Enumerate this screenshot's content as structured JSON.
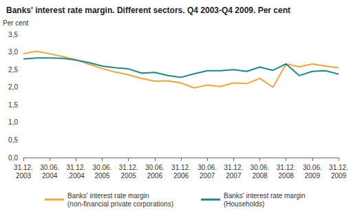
{
  "chart_data": {
    "type": "line",
    "title": "Banks' interest rate margin. Different sectors. Q4 2003-Q4 2009. Per cent",
    "y_label": "Per cent",
    "categories": [
      "31.12.\n2003",
      null,
      "30.06.\n2004",
      null,
      "31.12.\n.2004",
      null,
      "30.06.\n2005",
      null,
      "31.12.\n2005",
      null,
      "30.06.\n2006",
      null,
      "31.12.\n2006",
      null,
      "30.06.\n2007",
      null,
      "31.12.\n2007",
      null,
      "30.06.\n2008",
      null,
      "31.12.\n2008",
      null,
      "30.06.\n2009",
      null,
      "31.12.\n2009"
    ],
    "series": [
      {
        "name": "Banks' interest rate margin\n(non-financial private corporations)",
        "color": "#f5a33a",
        "values": [
          2.95,
          3.02,
          2.95,
          2.87,
          2.78,
          2.65,
          2.53,
          2.43,
          2.35,
          2.25,
          2.17,
          2.18,
          2.12,
          1.98,
          2.06,
          2.02,
          2.12,
          2.1,
          2.25,
          2.0,
          2.66,
          2.58,
          2.66,
          2.6,
          2.55
        ]
      },
      {
        "name": "Banks' interest rate margin\n(Households)",
        "color": "#178a8a",
        "values": [
          2.8,
          2.83,
          2.83,
          2.82,
          2.77,
          2.7,
          2.6,
          2.55,
          2.52,
          2.4,
          2.42,
          2.33,
          2.28,
          2.38,
          2.47,
          2.47,
          2.5,
          2.45,
          2.57,
          2.48,
          2.66,
          2.33,
          2.45,
          2.47,
          2.37
        ]
      }
    ],
    "ylim": [
      0,
      3.5
    ],
    "yticks": [
      {
        "value": 0,
        "label": "0,0"
      },
      {
        "value": 0.5,
        "label": "0,5"
      },
      {
        "value": 1,
        "label": "1,0"
      },
      {
        "value": 1.5,
        "label": "1,5"
      },
      {
        "value": 2,
        "label": "2,0"
      },
      {
        "value": 2.5,
        "label": "2,5"
      },
      {
        "value": 3,
        "label": "3,0"
      },
      {
        "value": 3.5,
        "label": "3,5"
      }
    ],
    "grid": false,
    "legend": "bottom"
  }
}
